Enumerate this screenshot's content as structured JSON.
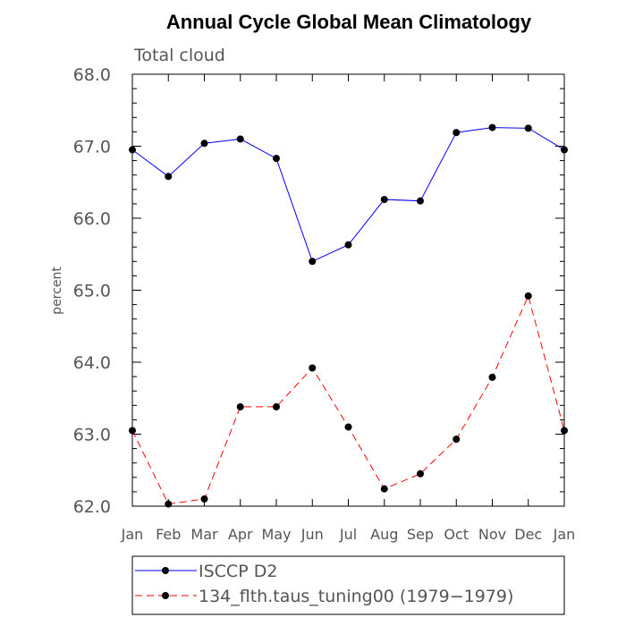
{
  "chart_data": {
    "type": "line",
    "title": "Annual Cycle Global Mean Climatology",
    "subtitle": "Total cloud",
    "xlabel": "",
    "ylabel": "percent",
    "categories": [
      "Jan",
      "Feb",
      "Mar",
      "Apr",
      "May",
      "Jun",
      "Jul",
      "Aug",
      "Sep",
      "Oct",
      "Nov",
      "Dec",
      "Jan"
    ],
    "ylim": [
      62.0,
      68.0
    ],
    "yticks": [
      "62.0",
      "63.0",
      "64.0",
      "65.0",
      "66.0",
      "67.0",
      "68.0"
    ],
    "yticks_values": [
      62.0,
      63.0,
      64.0,
      65.0,
      66.0,
      67.0,
      68.0
    ],
    "series": [
      {
        "name": "ISCCP D2",
        "color": "#0000ff",
        "dash": "solid",
        "values": [
          66.95,
          66.58,
          67.04,
          67.1,
          66.83,
          65.4,
          65.63,
          66.26,
          66.24,
          67.19,
          67.26,
          67.25,
          66.95
        ]
      },
      {
        "name": "134_flth.taus_tuning00 (1979−1979)",
        "color": "#ff0000",
        "dash": "dashed",
        "values": [
          63.05,
          62.03,
          62.1,
          63.38,
          63.38,
          63.92,
          63.1,
          62.24,
          62.45,
          62.93,
          63.79,
          64.92,
          63.05
        ]
      }
    ],
    "legend": "bottom",
    "grid": false
  }
}
